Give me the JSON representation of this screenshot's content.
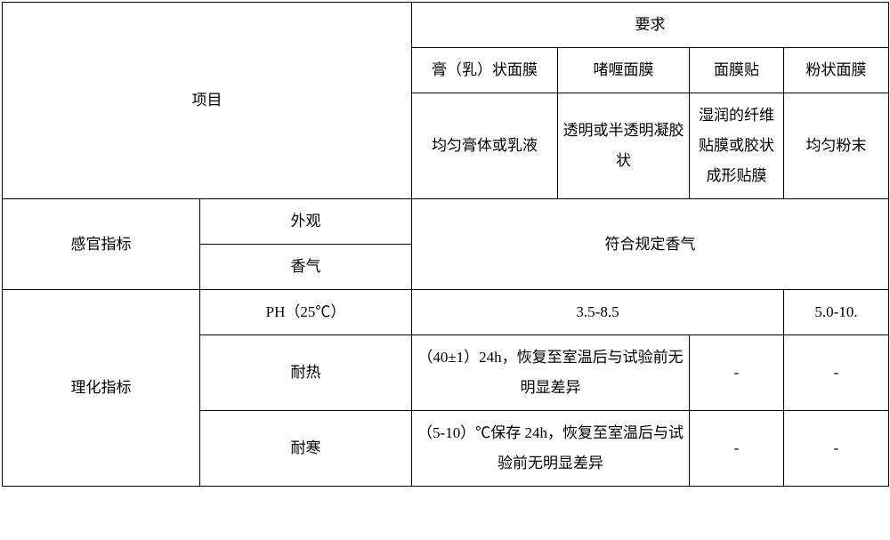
{
  "header": {
    "project": "项目",
    "requirements": "要求",
    "col_cream": "膏（乳）状面膜",
    "col_gel": "啫喱面膜",
    "col_sheet": "面膜贴",
    "col_powder": "粉状面膜",
    "desc_cream": "均匀膏体或乳液",
    "desc_gel": "透明或半透明凝胶状",
    "desc_sheet": "湿润的纤维贴膜或胶状成形贴膜",
    "desc_powder": "均匀粉末"
  },
  "sensory": {
    "title": "感官指标",
    "appearance": "外观",
    "aroma": "香气",
    "aroma_req": "符合规定香气"
  },
  "physchem": {
    "title": "理化指标",
    "ph_label": "PH（25℃）",
    "ph_range1": "3.5-8.5",
    "ph_range2": "5.0-10.",
    "heat_label": "耐热",
    "heat_req": "（40±1）24h，恢复至室温后与试验前无明显差异",
    "cold_label": "耐寒",
    "cold_req": "（5-10）℃保存 24h，恢复至室温后与试验前无明显差异",
    "dash": "-"
  }
}
